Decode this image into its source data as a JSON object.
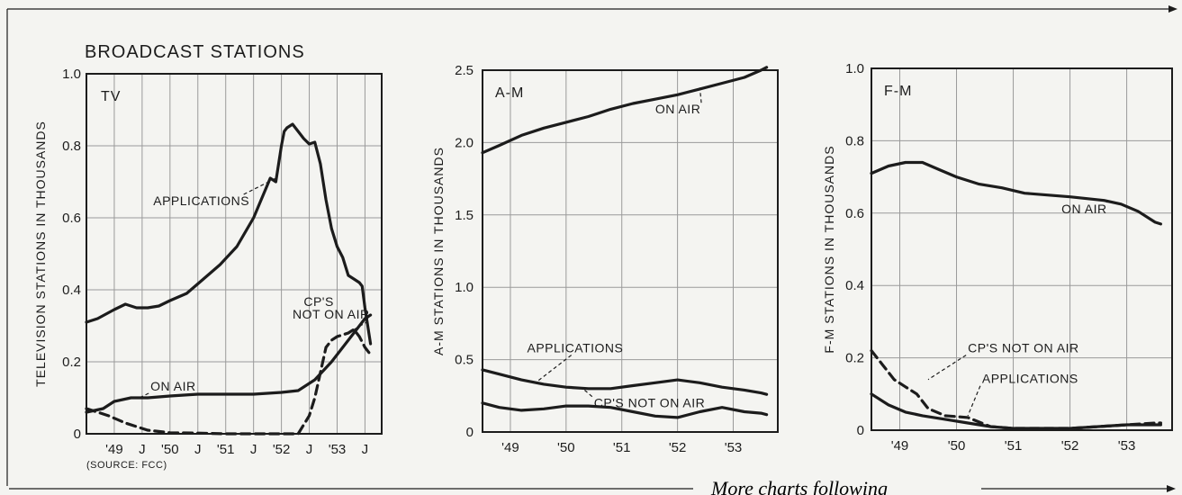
{
  "header": {
    "title": "BROADCAST STATIONS",
    "source": "(SOURCE: FCC)"
  },
  "footer": {
    "text": "More charts following"
  },
  "chart_data": [
    {
      "type": "line",
      "panel_label": "TV",
      "ylabel": "TELEVISION STATIONS IN THOUSANDS",
      "ylim": [
        0,
        1.0
      ],
      "yticks": [
        0,
        0.2,
        0.4,
        0.6,
        0.8,
        1.0
      ],
      "ytick_labels": [
        "0",
        "0.2",
        "0.4",
        "0.6",
        "0.8",
        "1.0"
      ],
      "xlim": [
        1948.5,
        1953.8
      ],
      "xticks": [
        1949.0,
        1949.5,
        1950.0,
        1950.5,
        1951.0,
        1951.5,
        1952.0,
        1952.5,
        1953.0,
        1953.5
      ],
      "xtick_labels": [
        "'49",
        "J",
        "'50",
        "J",
        "'51",
        "J",
        "'52",
        "J",
        "'53",
        "J"
      ],
      "grid": true,
      "series": [
        {
          "name": "APPLICATIONS",
          "style": "solid",
          "x": [
            1948.5,
            1948.7,
            1949.0,
            1949.2,
            1949.4,
            1949.6,
            1949.8,
            1950.0,
            1950.3,
            1950.6,
            1950.9,
            1951.2,
            1951.5,
            1951.8,
            1951.9,
            1952.0,
            1952.05,
            1952.1,
            1952.2,
            1952.3,
            1952.4,
            1952.5,
            1952.6,
            1952.7,
            1952.8,
            1952.9,
            1953.0,
            1953.1,
            1953.2,
            1953.3,
            1953.4,
            1953.45,
            1953.5,
            1953.55,
            1953.6
          ],
          "values": [
            0.31,
            0.32,
            0.345,
            0.36,
            0.35,
            0.35,
            0.355,
            0.37,
            0.39,
            0.43,
            0.47,
            0.52,
            0.6,
            0.71,
            0.7,
            0.8,
            0.84,
            0.85,
            0.86,
            0.84,
            0.82,
            0.805,
            0.81,
            0.75,
            0.65,
            0.57,
            0.52,
            0.49,
            0.44,
            0.43,
            0.42,
            0.41,
            0.35,
            0.3,
            0.25
          ]
        },
        {
          "name": "CP'S NOT ON AIR",
          "style": "dashed",
          "x": [
            1948.5,
            1948.7,
            1948.9,
            1949.2,
            1949.6,
            1950.0,
            1950.5,
            1951.0,
            1951.5,
            1952.0,
            1952.3,
            1952.5,
            1952.6,
            1952.7,
            1952.8,
            1952.9,
            1953.0,
            1953.1,
            1953.2,
            1953.3,
            1953.4,
            1953.5,
            1953.6
          ],
          "values": [
            0.07,
            0.06,
            0.05,
            0.03,
            0.01,
            0.003,
            0.002,
            0.0,
            0.0,
            0.0,
            0.0,
            0.05,
            0.1,
            0.17,
            0.24,
            0.26,
            0.27,
            0.275,
            0.28,
            0.29,
            0.27,
            0.24,
            0.22
          ]
        },
        {
          "name": "ON AIR",
          "style": "solid",
          "x": [
            1948.5,
            1948.8,
            1949.0,
            1949.3,
            1949.6,
            1950.0,
            1950.5,
            1951.0,
            1951.5,
            1952.0,
            1952.3,
            1952.6,
            1952.9,
            1953.1,
            1953.3,
            1953.5,
            1953.6
          ],
          "values": [
            0.06,
            0.07,
            0.09,
            0.1,
            0.1,
            0.105,
            0.11,
            0.11,
            0.11,
            0.115,
            0.12,
            0.15,
            0.2,
            0.24,
            0.28,
            0.32,
            0.33
          ]
        }
      ],
      "annotations": [
        {
          "text": "APPLICATIONS",
          "x": 1949.7,
          "y": 0.635,
          "target_x": 1951.9,
          "target_y": 0.71
        },
        {
          "text": "CP'S",
          "x": 1952.4,
          "y": 0.355,
          "target_x": null,
          "target_y": null
        },
        {
          "text": "NOT ON AIR",
          "x": 1952.2,
          "y": 0.32,
          "target_x": 1953.25,
          "target_y": 0.285
        },
        {
          "text": "ON AIR",
          "x": 1949.65,
          "y": 0.12,
          "target_x": 1949.45,
          "target_y": 0.1
        }
      ]
    },
    {
      "type": "line",
      "panel_label": "A-M",
      "ylabel": "A-M STATIONS IN THOUSANDS",
      "ylim": [
        0,
        2.5
      ],
      "yticks": [
        0,
        0.5,
        1.0,
        1.5,
        2.0,
        2.5
      ],
      "ytick_labels": [
        "0",
        "0.5",
        "1.0",
        "1.5",
        "2.0",
        "2.5"
      ],
      "xlim": [
        1948.5,
        1953.8
      ],
      "xticks": [
        1949,
        1950,
        1951,
        1952,
        1953
      ],
      "xtick_labels": [
        "'49",
        "'50",
        "'51",
        "'52",
        "'53"
      ],
      "grid": true,
      "series": [
        {
          "name": "ON AIR",
          "style": "solid",
          "x": [
            1948.5,
            1948.8,
            1949.2,
            1949.6,
            1950.0,
            1950.4,
            1950.8,
            1951.2,
            1951.6,
            1952.0,
            1952.4,
            1952.8,
            1953.2,
            1953.5,
            1953.6
          ],
          "values": [
            1.93,
            1.98,
            2.05,
            2.1,
            2.14,
            2.18,
            2.23,
            2.27,
            2.3,
            2.33,
            2.37,
            2.41,
            2.45,
            2.5,
            2.52
          ]
        },
        {
          "name": "APPLICATIONS",
          "style": "solid",
          "x": [
            1948.5,
            1948.8,
            1949.2,
            1949.6,
            1950.0,
            1950.4,
            1950.8,
            1951.2,
            1951.6,
            1952.0,
            1952.4,
            1952.8,
            1953.2,
            1953.5,
            1953.6
          ],
          "values": [
            0.43,
            0.4,
            0.36,
            0.33,
            0.31,
            0.3,
            0.3,
            0.32,
            0.34,
            0.36,
            0.34,
            0.31,
            0.29,
            0.27,
            0.26
          ]
        },
        {
          "name": "CP'S NOT ON AIR",
          "style": "solid",
          "x": [
            1948.5,
            1948.8,
            1949.2,
            1949.6,
            1950.0,
            1950.4,
            1950.8,
            1951.2,
            1951.6,
            1952.0,
            1952.4,
            1952.8,
            1953.2,
            1953.5,
            1953.6
          ],
          "values": [
            0.2,
            0.17,
            0.15,
            0.16,
            0.18,
            0.18,
            0.17,
            0.14,
            0.11,
            0.1,
            0.14,
            0.17,
            0.14,
            0.13,
            0.12
          ]
        }
      ],
      "annotations": [
        {
          "text": "ON AIR",
          "x": 1951.6,
          "y": 2.2,
          "target_x": 1952.4,
          "target_y": 2.38
        },
        {
          "text": "APPLICATIONS",
          "x": 1949.3,
          "y": 0.55,
          "target_x": 1949.45,
          "target_y": 0.34
        },
        {
          "text": "CP'S NOT ON AIR",
          "x": 1950.5,
          "y": 0.17,
          "target_x": 1950.3,
          "target_y": 0.3
        }
      ]
    },
    {
      "type": "line",
      "panel_label": "F-M",
      "ylabel": "F-M STATIONS IN THOUSANDS",
      "ylim": [
        0,
        1.0
      ],
      "yticks": [
        0,
        0.2,
        0.4,
        0.6,
        0.8,
        1.0
      ],
      "ytick_labels": [
        "0",
        "0.2",
        "0.4",
        "0.6",
        "0.8",
        "1.0"
      ],
      "xlim": [
        1948.5,
        1953.8
      ],
      "xticks": [
        1949,
        1950,
        1951,
        1952,
        1953
      ],
      "xtick_labels": [
        "'49",
        "'50",
        "'51",
        "'52",
        "'53"
      ],
      "grid": true,
      "series": [
        {
          "name": "ON AIR",
          "style": "solid",
          "x": [
            1948.5,
            1948.8,
            1949.1,
            1949.4,
            1949.7,
            1950.0,
            1950.4,
            1950.8,
            1951.2,
            1951.6,
            1952.0,
            1952.3,
            1952.6,
            1952.9,
            1953.2,
            1953.5,
            1953.6
          ],
          "values": [
            0.71,
            0.73,
            0.74,
            0.74,
            0.72,
            0.7,
            0.68,
            0.67,
            0.655,
            0.65,
            0.645,
            0.64,
            0.635,
            0.625,
            0.605,
            0.575,
            0.57
          ]
        },
        {
          "name": "CP'S NOT ON AIR",
          "style": "dashed",
          "x": [
            1948.5,
            1948.7,
            1948.9,
            1949.1,
            1949.3,
            1949.5,
            1949.8,
            1950.2,
            1950.6,
            1951.0,
            1951.5,
            1952.0,
            1952.5,
            1953.0,
            1953.5,
            1953.6
          ],
          "values": [
            0.22,
            0.18,
            0.14,
            0.12,
            0.1,
            0.06,
            0.04,
            0.035,
            0.01,
            0.005,
            0.005,
            0.005,
            0.01,
            0.015,
            0.02,
            0.02
          ]
        },
        {
          "name": "APPLICATIONS",
          "style": "solid",
          "x": [
            1948.5,
            1948.8,
            1949.1,
            1949.4,
            1949.8,
            1950.2,
            1950.6,
            1951.0,
            1951.5,
            1952.0,
            1952.5,
            1953.0,
            1953.5,
            1953.6
          ],
          "values": [
            0.1,
            0.07,
            0.05,
            0.04,
            0.03,
            0.02,
            0.01,
            0.005,
            0.005,
            0.005,
            0.01,
            0.015,
            0.015,
            0.015
          ]
        }
      ],
      "annotations": [
        {
          "text": "ON AIR",
          "x": 1951.85,
          "y": 0.6,
          "target_x": 1952.6,
          "target_y": 0.635
        },
        {
          "text": "CP'S NOT ON AIR",
          "x": 1950.2,
          "y": 0.215,
          "target_x": 1949.5,
          "target_y": 0.14
        },
        {
          "text": "APPLICATIONS",
          "x": 1950.45,
          "y": 0.13,
          "target_x": 1950.2,
          "target_y": 0.04
        }
      ]
    }
  ]
}
